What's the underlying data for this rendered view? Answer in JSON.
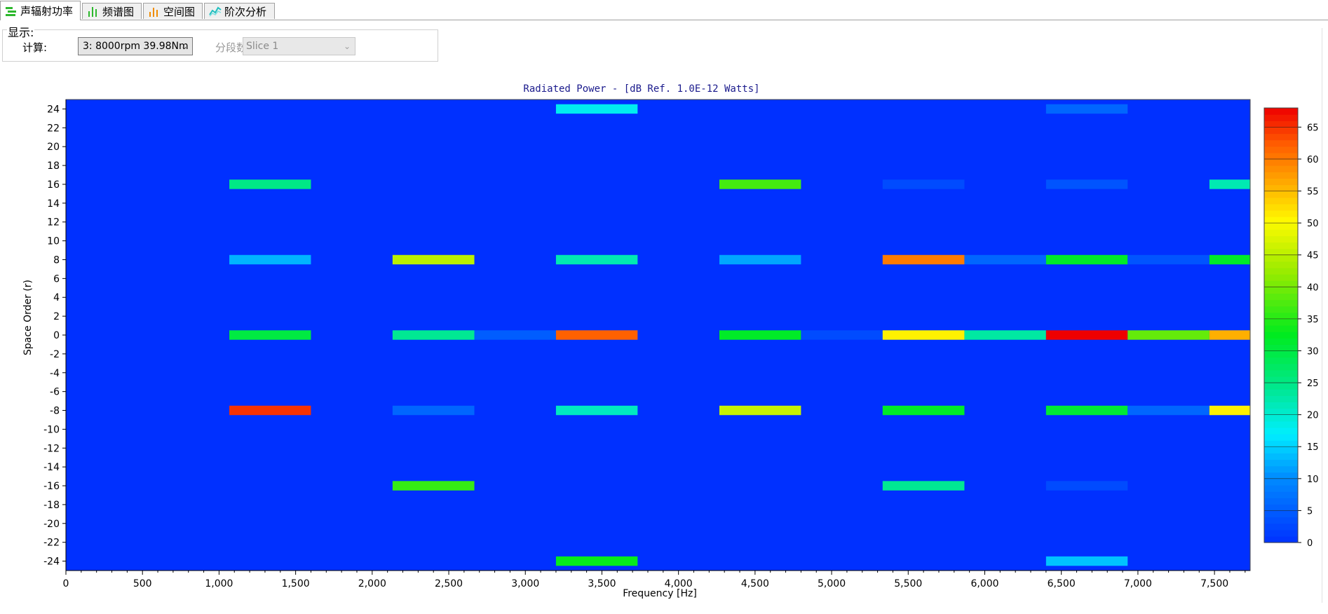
{
  "tabs": [
    {
      "label": "声辐射功率",
      "icon": "radiated-power-icon",
      "icon_color": "#2db82d",
      "active": true
    },
    {
      "label": "频谱图",
      "icon": "spectrum-icon",
      "icon_color": "#2db82d",
      "active": false
    },
    {
      "label": "空间图",
      "icon": "spatial-icon",
      "icon_color": "#f08c00",
      "active": false
    },
    {
      "label": "阶次分析",
      "icon": "order-analysis-icon",
      "icon_color": "#1fbfbf",
      "active": false
    }
  ],
  "display": {
    "group_title": "显示:",
    "calc_label": "计算:",
    "calc_value": "3:  8000rpm  39.98Nm",
    "segment_label": "分段数",
    "slice_value": "Slice 1"
  },
  "chart_data": {
    "type": "heatmap",
    "title": "Radiated Power - [dB Ref. 1.0E-12 Watts]",
    "xlabel": "Frequency [Hz]",
    "ylabel": "Space Order (r)",
    "xlim": [
      0,
      7733
    ],
    "ylim": [
      -25,
      25
    ],
    "x_ticks": [
      0,
      500,
      1000,
      1500,
      2000,
      2500,
      3000,
      3500,
      4000,
      4500,
      5000,
      5500,
      6000,
      6500,
      7000,
      7500
    ],
    "x_tick_labels": [
      "0",
      "500",
      "1,000",
      "1,500",
      "2,000",
      "2,500",
      "3,000",
      "3,500",
      "4,000",
      "4,500",
      "5,000",
      "5,500",
      "6,000",
      "6,500",
      "7,000",
      "7,500"
    ],
    "y_ticks": [
      24,
      22,
      20,
      18,
      16,
      14,
      12,
      10,
      8,
      6,
      4,
      2,
      0,
      -2,
      -4,
      -6,
      -8,
      -10,
      -12,
      -14,
      -16,
      -18,
      -20,
      -22,
      -24
    ],
    "colorbar": {
      "min": 0,
      "max": 68,
      "ticks": [
        0,
        5,
        10,
        15,
        20,
        25,
        30,
        35,
        40,
        45,
        50,
        55,
        60,
        65
      ]
    },
    "background_value": 0,
    "cell_height": 1,
    "cells": [
      {
        "x0": 1067,
        "x1": 1600,
        "y": 16,
        "v": 25
      },
      {
        "x0": 1067,
        "x1": 1600,
        "y": 8,
        "v": 13
      },
      {
        "x0": 1067,
        "x1": 1600,
        "y": 0,
        "v": 30
      },
      {
        "x0": 1067,
        "x1": 1600,
        "y": -8,
        "v": 65
      },
      {
        "x0": 2133,
        "x1": 2667,
        "y": 8,
        "v": 45
      },
      {
        "x0": 2133,
        "x1": 2667,
        "y": 0,
        "v": 24
      },
      {
        "x0": 2667,
        "x1": 3200,
        "y": 0,
        "v": 5
      },
      {
        "x0": 2133,
        "x1": 2667,
        "y": -8,
        "v": 6
      },
      {
        "x0": 2133,
        "x1": 2667,
        "y": -16,
        "v": 36
      },
      {
        "x0": 3200,
        "x1": 3733,
        "y": 24,
        "v": 18
      },
      {
        "x0": 3200,
        "x1": 3733,
        "y": 8,
        "v": 22
      },
      {
        "x0": 3200,
        "x1": 3733,
        "y": 0,
        "v": 62
      },
      {
        "x0": 3200,
        "x1": 3733,
        "y": -8,
        "v": 21
      },
      {
        "x0": 3200,
        "x1": 3733,
        "y": -24,
        "v": 33
      },
      {
        "x0": 4267,
        "x1": 4800,
        "y": 16,
        "v": 37
      },
      {
        "x0": 4267,
        "x1": 4800,
        "y": 8,
        "v": 12
      },
      {
        "x0": 4267,
        "x1": 4800,
        "y": 0,
        "v": 32
      },
      {
        "x0": 4800,
        "x1": 5333,
        "y": 0,
        "v": 3
      },
      {
        "x0": 4267,
        "x1": 4800,
        "y": -8,
        "v": 46
      },
      {
        "x0": 5333,
        "x1": 5867,
        "y": 16,
        "v": 3
      },
      {
        "x0": 5333,
        "x1": 5867,
        "y": 8,
        "v": 60
      },
      {
        "x0": 5867,
        "x1": 6400,
        "y": 8,
        "v": 6
      },
      {
        "x0": 5333,
        "x1": 5867,
        "y": 0,
        "v": 51
      },
      {
        "x0": 5867,
        "x1": 6400,
        "y": 0,
        "v": 23
      },
      {
        "x0": 5333,
        "x1": 5867,
        "y": -8,
        "v": 32
      },
      {
        "x0": 5333,
        "x1": 5867,
        "y": -16,
        "v": 24
      },
      {
        "x0": 6400,
        "x1": 6933,
        "y": 24,
        "v": 6
      },
      {
        "x0": 6400,
        "x1": 6933,
        "y": 16,
        "v": 4
      },
      {
        "x0": 6400,
        "x1": 6933,
        "y": 8,
        "v": 32
      },
      {
        "x0": 6933,
        "x1": 7467,
        "y": 8,
        "v": 4
      },
      {
        "x0": 6400,
        "x1": 6933,
        "y": 0,
        "v": 68
      },
      {
        "x0": 6933,
        "x1": 7467,
        "y": 0,
        "v": 39
      },
      {
        "x0": 6400,
        "x1": 6933,
        "y": -8,
        "v": 31
      },
      {
        "x0": 6933,
        "x1": 7467,
        "y": -8,
        "v": 6
      },
      {
        "x0": 6400,
        "x1": 6933,
        "y": -16,
        "v": 3
      },
      {
        "x0": 6400,
        "x1": 6933,
        "y": -24,
        "v": 14
      },
      {
        "x0": 7467,
        "x1": 7733,
        "y": 16,
        "v": 22
      },
      {
        "x0": 7467,
        "x1": 7733,
        "y": 8,
        "v": 32
      },
      {
        "x0": 7467,
        "x1": 7733,
        "y": 0,
        "v": 56
      },
      {
        "x0": 7467,
        "x1": 7733,
        "y": -8,
        "v": 51
      }
    ]
  },
  "colors": {
    "title": "#1a1a8c",
    "axis_text": "#000000"
  }
}
